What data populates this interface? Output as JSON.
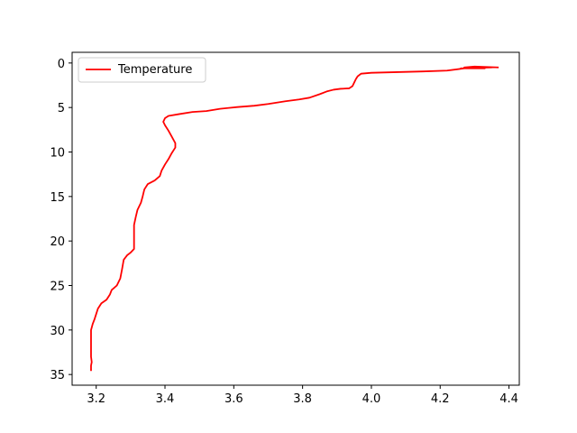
{
  "chart_data": {
    "type": "line",
    "title": "",
    "xlabel": "",
    "ylabel": "",
    "xlim": [
      3.13,
      4.43
    ],
    "ylim": [
      36.2,
      -1.2
    ],
    "y_inverted": true,
    "grid": false,
    "legend_position": "top-left",
    "x_ticks": [
      {
        "value": 3.2,
        "label": "3.2"
      },
      {
        "value": 3.4,
        "label": "3.4"
      },
      {
        "value": 3.6,
        "label": "3.6"
      },
      {
        "value": 3.8,
        "label": "3.8"
      },
      {
        "value": 4.0,
        "label": "4.0"
      },
      {
        "value": 4.2,
        "label": "4.2"
      },
      {
        "value": 4.4,
        "label": "4.4"
      }
    ],
    "y_ticks": [
      {
        "value": 0,
        "label": "0"
      },
      {
        "value": 5,
        "label": "5"
      },
      {
        "value": 10,
        "label": "10"
      },
      {
        "value": 15,
        "label": "15"
      },
      {
        "value": 20,
        "label": "20"
      },
      {
        "value": 25,
        "label": "25"
      },
      {
        "value": 30,
        "label": "30"
      },
      {
        "value": 35,
        "label": "35"
      }
    ],
    "series": [
      {
        "name": "Temperature",
        "color": "#ff0000",
        "points": [
          [
            4.37,
            0.5
          ],
          [
            4.3,
            0.4
          ],
          [
            4.27,
            0.5
          ],
          [
            4.33,
            0.6
          ],
          [
            4.26,
            0.6
          ],
          [
            4.35,
            0.5
          ],
          [
            4.28,
            0.55
          ],
          [
            4.27,
            0.6
          ],
          [
            4.22,
            0.85
          ],
          [
            4.15,
            0.95
          ],
          [
            4.1,
            1.0
          ],
          [
            4.05,
            1.05
          ],
          [
            4.0,
            1.1
          ],
          [
            3.97,
            1.2
          ],
          [
            3.96,
            1.5
          ],
          [
            3.955,
            1.8
          ],
          [
            3.95,
            2.2
          ],
          [
            3.945,
            2.6
          ],
          [
            3.935,
            2.85
          ],
          [
            3.91,
            2.9
          ],
          [
            3.89,
            3.0
          ],
          [
            3.87,
            3.2
          ],
          [
            3.85,
            3.5
          ],
          [
            3.82,
            3.9
          ],
          [
            3.79,
            4.1
          ],
          [
            3.75,
            4.3
          ],
          [
            3.7,
            4.6
          ],
          [
            3.66,
            4.8
          ],
          [
            3.61,
            4.95
          ],
          [
            3.56,
            5.15
          ],
          [
            3.52,
            5.4
          ],
          [
            3.48,
            5.5
          ],
          [
            3.44,
            5.75
          ],
          [
            3.41,
            5.95
          ],
          [
            3.4,
            6.2
          ],
          [
            3.395,
            6.6
          ],
          [
            3.4,
            7.0
          ],
          [
            3.41,
            7.6
          ],
          [
            3.42,
            8.3
          ],
          [
            3.43,
            9.0
          ],
          [
            3.43,
            9.5
          ],
          [
            3.42,
            10.1
          ],
          [
            3.41,
            10.8
          ],
          [
            3.4,
            11.4
          ],
          [
            3.39,
            12.1
          ],
          [
            3.385,
            12.7
          ],
          [
            3.37,
            13.2
          ],
          [
            3.35,
            13.6
          ],
          [
            3.34,
            14.2
          ],
          [
            3.335,
            15.0
          ],
          [
            3.33,
            15.7
          ],
          [
            3.32,
            16.5
          ],
          [
            3.315,
            17.3
          ],
          [
            3.31,
            18.2
          ],
          [
            3.31,
            19.2
          ],
          [
            3.31,
            20.1
          ],
          [
            3.31,
            20.9
          ],
          [
            3.3,
            21.3
          ],
          [
            3.29,
            21.6
          ],
          [
            3.28,
            22.1
          ],
          [
            3.275,
            23.2
          ],
          [
            3.27,
            24.2
          ],
          [
            3.26,
            25.0
          ],
          [
            3.245,
            25.5
          ],
          [
            3.24,
            26.0
          ],
          [
            3.23,
            26.6
          ],
          [
            3.215,
            27.0
          ],
          [
            3.205,
            27.6
          ],
          [
            3.2,
            28.2
          ],
          [
            3.195,
            28.8
          ],
          [
            3.19,
            29.3
          ],
          [
            3.185,
            30.0
          ],
          [
            3.185,
            31.0
          ],
          [
            3.185,
            32.0
          ],
          [
            3.185,
            33.0
          ],
          [
            3.187,
            33.6
          ],
          [
            3.185,
            34.0
          ],
          [
            3.185,
            34.6
          ]
        ]
      }
    ]
  }
}
